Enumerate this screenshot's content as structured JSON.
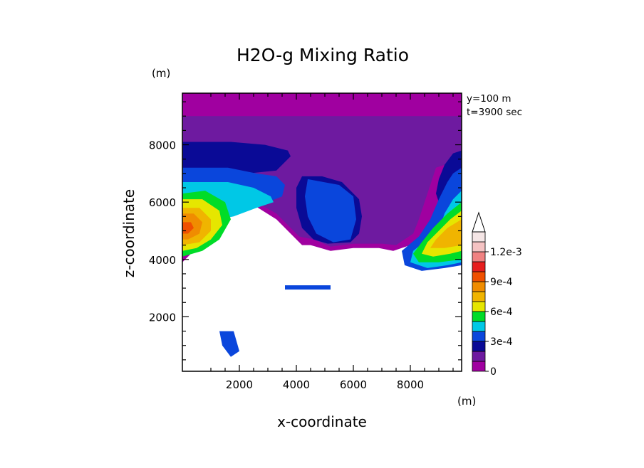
{
  "chart_data": {
    "type": "heatmap",
    "title": "H2O-g Mixing Ratio",
    "xlabel": "x-coordinate",
    "ylabel": "z-coordinate",
    "x_unit": "(m)",
    "y_unit": "(m)",
    "info": [
      "y=100 m",
      "t=3900 sec"
    ],
    "xlim": [
      0,
      9800
    ],
    "ylim": [
      100,
      9800
    ],
    "x_ticks": [
      2000,
      4000,
      6000,
      8000
    ],
    "y_ticks": [
      2000,
      4000,
      6000,
      8000
    ],
    "x_tick_labels": [
      "2000",
      "4000",
      "6000",
      "8000"
    ],
    "y_tick_labels": [
      "2000",
      "4000",
      "6000",
      "8000"
    ],
    "colorbar": {
      "levels": [
        0,
        0.0001,
        0.0002,
        0.0003,
        0.0004,
        0.0005,
        0.0006,
        0.0007,
        0.0008,
        0.0009,
        0.001,
        0.0011,
        0.0012,
        0.0013
      ],
      "colors": [
        "#a000a0",
        "#6e1aa0",
        "#0a0a96",
        "#0a46dc",
        "#00c8e6",
        "#00dc28",
        "#e6e600",
        "#f0b400",
        "#f08c00",
        "#f05000",
        "#e61e1e",
        "#f08282",
        "#f5c3c3",
        "#f5e6e6"
      ],
      "labels": [
        {
          "level": 0,
          "text": "0"
        },
        {
          "level": 0.0003,
          "text": "3e-4"
        },
        {
          "level": 0.0006,
          "text": "6e-4"
        },
        {
          "level": 0.0009,
          "text": "9e-4"
        },
        {
          "level": 0.0012,
          "text": "1.2e-3"
        }
      ],
      "extend": "max"
    },
    "regions": [
      {
        "level": 0,
        "poly": [
          [
            0,
            9800
          ],
          [
            9800,
            9800
          ],
          [
            9800,
            6500
          ],
          [
            9150,
            6200
          ],
          [
            8800,
            5400
          ],
          [
            8400,
            4800
          ],
          [
            8000,
            4500
          ],
          [
            7400,
            4300
          ],
          [
            6900,
            4400
          ],
          [
            6000,
            4400
          ],
          [
            5200,
            4300
          ],
          [
            4500,
            4500
          ],
          [
            4200,
            4500
          ],
          [
            3700,
            5000
          ],
          [
            3300,
            5400
          ],
          [
            2500,
            5900
          ],
          [
            1800,
            6000
          ],
          [
            1000,
            5400
          ],
          [
            500,
            4400
          ],
          [
            0,
            3900
          ]
        ]
      },
      {
        "level": 0.0001,
        "poly": [
          [
            0,
            9000
          ],
          [
            9800,
            9000
          ],
          [
            9800,
            7500
          ],
          [
            8900,
            7200
          ],
          [
            8700,
            6600
          ],
          [
            8300,
            5400
          ],
          [
            8100,
            4900
          ],
          [
            7500,
            4500
          ],
          [
            7000,
            4550
          ],
          [
            6000,
            4550
          ],
          [
            5200,
            4450
          ],
          [
            4600,
            4700
          ],
          [
            4100,
            4800
          ],
          [
            3700,
            5200
          ],
          [
            3300,
            5600
          ],
          [
            2400,
            6100
          ],
          [
            1600,
            6200
          ],
          [
            800,
            5800
          ],
          [
            300,
            4800
          ],
          [
            0,
            4100
          ]
        ]
      },
      {
        "level": 0.0002,
        "poly": [
          [
            0,
            8100
          ],
          [
            1700,
            8100
          ],
          [
            2900,
            8000
          ],
          [
            3700,
            7800
          ],
          [
            3800,
            7600
          ],
          [
            3300,
            7100
          ],
          [
            2300,
            7000
          ],
          [
            1700,
            7000
          ],
          [
            0,
            7100
          ]
        ]
      },
      {
        "level": 0.0002,
        "poly": [
          [
            9800,
            7800
          ],
          [
            9500,
            7700
          ],
          [
            9200,
            7300
          ],
          [
            9000,
            6800
          ],
          [
            8900,
            6300
          ],
          [
            9100,
            5700
          ],
          [
            9800,
            5600
          ]
        ]
      },
      {
        "level": 0.0002,
        "poly": [
          [
            4200,
            6900
          ],
          [
            4900,
            6900
          ],
          [
            5600,
            6700
          ],
          [
            6200,
            6100
          ],
          [
            6300,
            5500
          ],
          [
            6200,
            4900
          ],
          [
            5900,
            4600
          ],
          [
            5100,
            4550
          ],
          [
            4600,
            4700
          ],
          [
            4200,
            5100
          ],
          [
            4000,
            5800
          ],
          [
            4000,
            6500
          ]
        ]
      },
      {
        "level": 0.0003,
        "poly": [
          [
            0,
            7200
          ],
          [
            1600,
            7200
          ],
          [
            2600,
            7000
          ],
          [
            3300,
            6900
          ],
          [
            3600,
            6600
          ],
          [
            3500,
            6200
          ],
          [
            3000,
            6000
          ],
          [
            2000,
            5900
          ],
          [
            1000,
            5900
          ],
          [
            0,
            5800
          ]
        ]
      },
      {
        "level": 0.0003,
        "poly": [
          [
            4400,
            6800
          ],
          [
            5500,
            6600
          ],
          [
            6000,
            6200
          ],
          [
            6100,
            5400
          ],
          [
            5900,
            4700
          ],
          [
            5300,
            4600
          ],
          [
            4700,
            4900
          ],
          [
            4400,
            5500
          ],
          [
            4300,
            6200
          ]
        ]
      },
      {
        "level": 0.0003,
        "poly": [
          [
            9800,
            7200
          ],
          [
            9500,
            7000
          ],
          [
            9300,
            6700
          ],
          [
            9000,
            6100
          ],
          [
            8700,
            5400
          ],
          [
            8300,
            4800
          ],
          [
            7700,
            4300
          ],
          [
            7800,
            3800
          ],
          [
            8400,
            3600
          ],
          [
            9200,
            3700
          ],
          [
            9800,
            3800
          ]
        ]
      },
      {
        "level": 0.0003,
        "poly": [
          [
            1300,
            1500
          ],
          [
            1800,
            1500
          ],
          [
            2000,
            800
          ],
          [
            1700,
            600
          ],
          [
            1400,
            1000
          ]
        ]
      },
      {
        "level": 0.0003,
        "poly": [
          [
            3600,
            3100
          ],
          [
            5200,
            3100
          ],
          [
            5200,
            2950
          ],
          [
            3600,
            2950
          ]
        ]
      },
      {
        "level": 0.0004,
        "poly": [
          [
            0,
            6700
          ],
          [
            1600,
            6700
          ],
          [
            2500,
            6500
          ],
          [
            3100,
            6200
          ],
          [
            3200,
            6000
          ],
          [
            2600,
            5800
          ],
          [
            1800,
            5500
          ],
          [
            800,
            5300
          ],
          [
            0,
            5200
          ]
        ]
      },
      {
        "level": 0.0004,
        "poly": [
          [
            9800,
            6400
          ],
          [
            9500,
            6100
          ],
          [
            9200,
            5600
          ],
          [
            9000,
            5000
          ],
          [
            8600,
            4700
          ],
          [
            8100,
            4300
          ],
          [
            8000,
            3900
          ],
          [
            8600,
            3700
          ],
          [
            9300,
            3800
          ],
          [
            9800,
            3900
          ]
        ]
      },
      {
        "level": 0.0005,
        "poly": [
          [
            0,
            6300
          ],
          [
            800,
            6400
          ],
          [
            1500,
            6000
          ],
          [
            1700,
            5400
          ],
          [
            1300,
            4700
          ],
          [
            700,
            4300
          ],
          [
            0,
            4100
          ]
        ]
      },
      {
        "level": 0.0005,
        "poly": [
          [
            9800,
            6000
          ],
          [
            9300,
            5600
          ],
          [
            8800,
            5100
          ],
          [
            8400,
            4600
          ],
          [
            8100,
            4200
          ],
          [
            8300,
            3900
          ],
          [
            9000,
            3900
          ],
          [
            9800,
            4000
          ]
        ]
      },
      {
        "level": 0.0006,
        "poly": [
          [
            0,
            6100
          ],
          [
            700,
            6100
          ],
          [
            1300,
            5700
          ],
          [
            1400,
            5200
          ],
          [
            1000,
            4700
          ],
          [
            500,
            4400
          ],
          [
            0,
            4300
          ]
        ]
      },
      {
        "level": 0.0006,
        "poly": [
          [
            9800,
            5700
          ],
          [
            9400,
            5400
          ],
          [
            9000,
            5000
          ],
          [
            8600,
            4600
          ],
          [
            8400,
            4200
          ],
          [
            8800,
            4100
          ],
          [
            9400,
            4200
          ],
          [
            9800,
            4300
          ]
        ]
      },
      {
        "level": 0.0007,
        "poly": [
          [
            0,
            5800
          ],
          [
            600,
            5800
          ],
          [
            1000,
            5400
          ],
          [
            1000,
            5000
          ],
          [
            600,
            4600
          ],
          [
            0,
            4500
          ]
        ]
      },
      {
        "level": 0.0007,
        "poly": [
          [
            9800,
            5400
          ],
          [
            9300,
            5100
          ],
          [
            8900,
            4700
          ],
          [
            8700,
            4400
          ],
          [
            9200,
            4400
          ],
          [
            9800,
            4500
          ]
        ]
      },
      {
        "level": 0.0008,
        "poly": [
          [
            0,
            5600
          ],
          [
            400,
            5600
          ],
          [
            700,
            5300
          ],
          [
            600,
            4900
          ],
          [
            200,
            4700
          ],
          [
            0,
            4700
          ]
        ]
      },
      {
        "level": 0.0009,
        "poly": [
          [
            0,
            5300
          ],
          [
            300,
            5300
          ],
          [
            400,
            5100
          ],
          [
            200,
            4900
          ],
          [
            0,
            4900
          ]
        ]
      }
    ]
  }
}
